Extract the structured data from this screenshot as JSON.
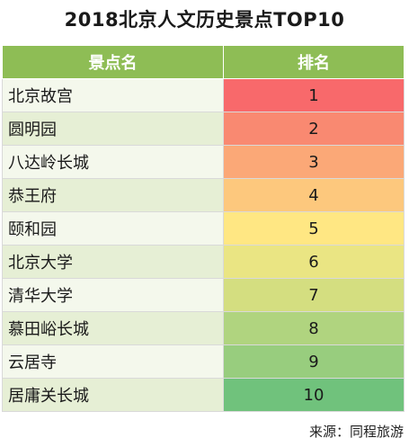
{
  "title": "2018北京人文历史景点TOP10",
  "headers": {
    "name": "景点名",
    "rank": "排名"
  },
  "source": "来源：同程旅游",
  "chart_data": {
    "type": "table",
    "title": "2018北京人文历史景点TOP10",
    "columns": [
      "景点名",
      "排名"
    ],
    "rows": [
      {
        "name": "北京故宫",
        "rank": 1,
        "color": "#f8696b"
      },
      {
        "name": "圆明园",
        "rank": 2,
        "color": "#f98971"
      },
      {
        "name": "八达岭长城",
        "rank": 3,
        "color": "#fba877"
      },
      {
        "name": "恭王府",
        "rank": 4,
        "color": "#fdc87d"
      },
      {
        "name": "颐和园",
        "rank": 5,
        "color": "#ffe783"
      },
      {
        "name": "北京大学",
        "rank": 6,
        "color": "#eae583"
      },
      {
        "name": "清华大学",
        "rank": 7,
        "color": "#d4de80"
      },
      {
        "name": "慕田峪长城",
        "rank": 8,
        "color": "#b0d47f"
      },
      {
        "name": "云居寺",
        "rank": 9,
        "color": "#98cd7e"
      },
      {
        "name": "居庸关长城",
        "rank": 10,
        "color": "#70c27c"
      }
    ]
  }
}
